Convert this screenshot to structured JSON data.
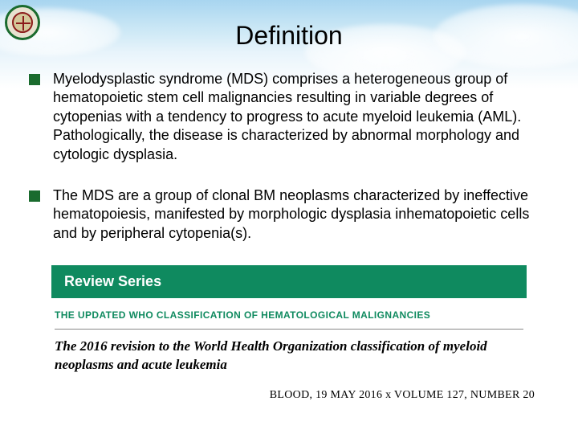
{
  "title": "Definition",
  "bullets": [
    "Myelodysplastic syndrome (MDS) comprises a heterogeneous group of hematopoietic stem cell malignancies resulting in variable degrees of cytopenias with a tendency to progress to acute myeloid leukemia (AML). Pathologically, the disease is characterized by abnormal morphology and cytologic dysplasia.",
    "The MDS are a group of clonal BM neoplasms characterized by ineffective hematopoiesis, manifested by morphologic dysplasia inhematopoietic cells and by peripheral cytopenia(s)."
  ],
  "review": {
    "band_label": "Review Series",
    "subheading": "THE UPDATED WHO CLASSIFICATION OF HEMATOLOGICAL MALIGNANCIES",
    "article_title": "The 2016 revision to the World Health Organization classification of myeloid neoplasms and acute leukemia"
  },
  "citation": "BLOOD, 19 MAY 2016 x VOLUME 127, NUMBER 20",
  "colors": {
    "bullet_marker": "#1a6b2e",
    "review_band_bg": "#0f8a5f",
    "review_band_text": "#ffffff",
    "review_sub_text": "#0f8a5f",
    "body_text": "#000000"
  }
}
